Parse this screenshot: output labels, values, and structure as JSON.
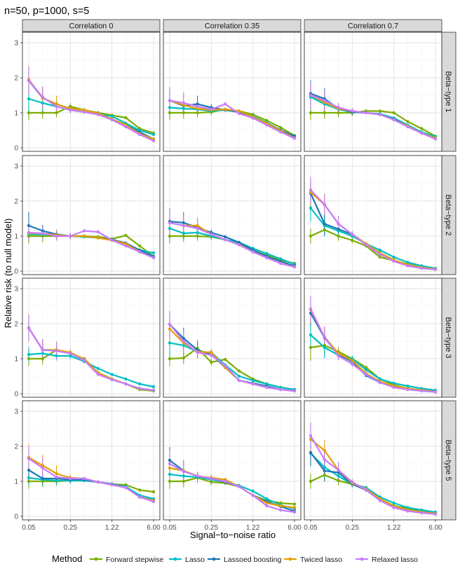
{
  "chart_data": {
    "type": "line",
    "title": "n=50, p=1000, s=5",
    "xlabel": "Signal−to−noise ratio",
    "ylabel": "Relative risk (to null model)",
    "x_ticks": [
      "0.05",
      "0.25",
      "1.22",
      "6.00"
    ],
    "y_ticks": [
      "0",
      "1",
      "2",
      "3"
    ],
    "ylim": [
      -0.1,
      3.3
    ],
    "legend_title": "Method",
    "legend_position": "bottom",
    "col_strips": [
      "Correlation 0",
      "Correlation 0.35",
      "Correlation 0.7"
    ],
    "row_strips": [
      "Beta−type 1",
      "Beta−type 2",
      "Beta−type 3",
      "Beta−type 5"
    ],
    "methods": [
      {
        "name": "Forward stepwise",
        "color": "#7cae00"
      },
      {
        "name": "Lasso",
        "color": "#00bfc4"
      },
      {
        "name": "Lassoed boosting",
        "color": "#1f78b4"
      },
      {
        "name": "Twiced lasso",
        "color": "#e69f00"
      },
      {
        "name": "Relaxed lasso",
        "color": "#c77cff"
      }
    ],
    "snr_index": [
      0,
      1,
      2,
      3,
      4,
      5,
      6,
      7,
      8,
      9
    ],
    "panels": [
      [
        [
          [
            1.0,
            1.0,
            1.0,
            1.18,
            1.08,
            1.0,
            0.93,
            0.86,
            0.55,
            0.42
          ],
          [
            1.4,
            1.28,
            1.18,
            1.08,
            1.02,
            0.96,
            0.9,
            0.7,
            0.5,
            0.38
          ],
          [
            1.92,
            1.42,
            1.25,
            1.12,
            1.08,
            0.98,
            0.82,
            0.65,
            0.45,
            0.25
          ],
          [
            1.95,
            1.42,
            1.25,
            1.12,
            1.08,
            0.98,
            0.82,
            0.65,
            0.4,
            0.25
          ],
          [
            1.92,
            1.45,
            1.18,
            1.08,
            1.02,
            0.95,
            0.8,
            0.6,
            0.38,
            0.2
          ]
        ],
        [
          [
            1.0,
            1.0,
            1.0,
            1.02,
            1.1,
            1.05,
            0.95,
            0.78,
            0.58,
            0.35
          ],
          [
            1.15,
            1.12,
            1.1,
            1.05,
            1.08,
            1.02,
            0.9,
            0.72,
            0.5,
            0.33
          ],
          [
            1.35,
            1.2,
            1.25,
            1.15,
            1.08,
            1.02,
            0.85,
            0.7,
            0.5,
            0.33
          ],
          [
            1.35,
            1.22,
            1.12,
            1.08,
            1.1,
            1.05,
            0.88,
            0.7,
            0.48,
            0.28
          ],
          [
            1.35,
            1.28,
            1.18,
            1.1,
            1.25,
            0.98,
            0.85,
            0.65,
            0.45,
            0.27
          ]
        ],
        [
          [
            1.0,
            1.0,
            1.0,
            1.0,
            1.05,
            1.05,
            1.0,
            0.75,
            0.55,
            0.33
          ],
          [
            1.45,
            1.25,
            1.1,
            1.02,
            1.0,
            0.97,
            0.85,
            0.65,
            0.45,
            0.32
          ],
          [
            1.55,
            1.4,
            1.12,
            1.02,
            1.0,
            0.95,
            0.82,
            0.62,
            0.42,
            0.28
          ],
          [
            1.5,
            1.3,
            1.12,
            1.05,
            1.0,
            0.95,
            0.8,
            0.62,
            0.42,
            0.28
          ],
          [
            1.5,
            1.35,
            1.15,
            1.05,
            1.0,
            0.95,
            0.8,
            0.6,
            0.42,
            0.25
          ]
        ]
      ],
      [
        [
          [
            1.0,
            1.0,
            1.0,
            1.0,
            1.0,
            0.98,
            0.92,
            1.02,
            0.72,
            0.42
          ],
          [
            1.05,
            1.05,
            1.03,
            1.0,
            0.98,
            0.95,
            0.9,
            0.75,
            0.6,
            0.52
          ],
          [
            1.3,
            1.15,
            1.05,
            1.0,
            1.0,
            0.95,
            0.9,
            0.8,
            0.6,
            0.42
          ],
          [
            1.08,
            1.08,
            1.03,
            1.0,
            1.0,
            0.95,
            0.88,
            0.78,
            0.55,
            0.38
          ],
          [
            1.1,
            1.08,
            1.0,
            1.0,
            1.15,
            1.12,
            0.88,
            0.72,
            0.55,
            0.38
          ]
        ],
        [
          [
            1.0,
            1.0,
            1.0,
            0.98,
            0.9,
            0.8,
            0.6,
            0.45,
            0.32,
            0.22
          ],
          [
            1.22,
            1.08,
            1.1,
            1.0,
            0.9,
            0.82,
            0.65,
            0.5,
            0.35,
            0.2
          ],
          [
            1.42,
            1.38,
            1.25,
            1.1,
            0.98,
            0.82,
            0.6,
            0.42,
            0.28,
            0.15
          ],
          [
            1.38,
            1.3,
            1.3,
            1.05,
            0.9,
            0.75,
            0.55,
            0.38,
            0.22,
            0.12
          ],
          [
            1.38,
            1.3,
            1.22,
            1.05,
            0.9,
            0.75,
            0.55,
            0.38,
            0.22,
            0.12
          ]
        ],
        [
          [
            1.0,
            1.18,
            1.0,
            0.88,
            0.72,
            0.4,
            0.3,
            0.2,
            0.1,
            0.05
          ],
          [
            1.8,
            1.3,
            1.15,
            1.0,
            0.78,
            0.6,
            0.4,
            0.25,
            0.15,
            0.08
          ],
          [
            2.22,
            1.35,
            1.2,
            1.05,
            0.78,
            0.5,
            0.3,
            0.18,
            0.1,
            0.06
          ],
          [
            2.25,
            1.9,
            1.35,
            1.05,
            0.78,
            0.52,
            0.32,
            0.18,
            0.1,
            0.06
          ],
          [
            2.32,
            1.9,
            1.35,
            1.05,
            0.75,
            0.48,
            0.28,
            0.15,
            0.08,
            0.05
          ]
        ]
      ],
      [
        [
          [
            1.0,
            1.0,
            1.25,
            1.15,
            1.0,
            0.6,
            0.42,
            0.28,
            0.12,
            0.08
          ],
          [
            1.12,
            1.15,
            1.08,
            1.08,
            0.92,
            0.72,
            0.55,
            0.42,
            0.28,
            0.2
          ],
          [
            1.88,
            1.25,
            1.25,
            1.15,
            0.98,
            0.6,
            0.42,
            0.28,
            0.15,
            0.1
          ],
          [
            1.88,
            1.25,
            1.25,
            1.18,
            0.98,
            0.6,
            0.42,
            0.28,
            0.15,
            0.1
          ],
          [
            1.88,
            1.25,
            1.22,
            1.15,
            0.95,
            0.55,
            0.4,
            0.28,
            0.15,
            0.1
          ]
        ],
        [
          [
            1.0,
            1.02,
            1.3,
            0.9,
            0.98,
            0.65,
            0.42,
            0.28,
            0.18,
            0.12
          ],
          [
            1.45,
            1.38,
            1.2,
            1.18,
            0.82,
            0.5,
            0.38,
            0.28,
            0.18,
            0.12
          ],
          [
            1.98,
            1.58,
            1.25,
            1.12,
            0.75,
            0.38,
            0.3,
            0.22,
            0.12,
            0.08
          ],
          [
            1.85,
            1.45,
            1.2,
            1.18,
            0.75,
            0.38,
            0.28,
            0.18,
            0.12,
            0.08
          ],
          [
            1.98,
            1.5,
            1.18,
            1.1,
            0.8,
            0.38,
            0.28,
            0.18,
            0.12,
            0.08
          ]
        ],
        [
          [
            1.32,
            1.38,
            1.2,
            1.0,
            0.75,
            0.42,
            0.25,
            0.15,
            0.1,
            0.05
          ],
          [
            1.68,
            1.32,
            1.1,
            1.0,
            0.68,
            0.42,
            0.3,
            0.22,
            0.15,
            0.1
          ],
          [
            2.3,
            1.6,
            1.12,
            0.92,
            0.52,
            0.32,
            0.2,
            0.15,
            0.1,
            0.06
          ],
          [
            2.4,
            1.62,
            1.15,
            0.95,
            0.58,
            0.35,
            0.22,
            0.15,
            0.1,
            0.06
          ],
          [
            2.42,
            1.62,
            1.08,
            0.85,
            0.55,
            0.32,
            0.18,
            0.12,
            0.08,
            0.05
          ]
        ]
      ],
      [
        [
          [
            1.0,
            1.0,
            1.0,
            1.02,
            1.02,
            0.98,
            0.92,
            0.9,
            0.75,
            0.7
          ],
          [
            1.1,
            1.05,
            1.02,
            1.02,
            1.02,
            0.98,
            0.92,
            0.85,
            0.6,
            0.5
          ],
          [
            1.32,
            1.08,
            1.08,
            1.05,
            1.05,
            0.98,
            0.92,
            0.82,
            0.55,
            0.45
          ],
          [
            1.68,
            1.45,
            1.22,
            1.1,
            1.08,
            0.98,
            0.9,
            0.82,
            0.55,
            0.45
          ],
          [
            1.65,
            1.38,
            1.12,
            1.08,
            1.08,
            0.98,
            0.9,
            0.82,
            0.55,
            0.42
          ]
        ],
        [
          [
            1.0,
            1.0,
            1.1,
            0.98,
            0.95,
            0.85,
            0.6,
            0.45,
            0.38,
            0.35
          ],
          [
            1.2,
            1.15,
            1.12,
            1.05,
            0.98,
            0.88,
            0.72,
            0.5,
            0.32,
            0.22
          ],
          [
            1.6,
            1.3,
            1.15,
            1.08,
            0.98,
            0.85,
            0.6,
            0.42,
            0.28,
            0.15
          ],
          [
            1.38,
            1.3,
            1.15,
            1.1,
            1.05,
            0.85,
            0.6,
            0.38,
            0.3,
            0.25
          ],
          [
            1.5,
            1.28,
            1.15,
            1.08,
            1.0,
            0.85,
            0.6,
            0.3,
            0.18,
            0.12
          ]
        ],
        [
          [
            1.0,
            1.18,
            1.02,
            0.92,
            0.75,
            0.5,
            0.3,
            0.22,
            0.15,
            0.1
          ],
          [
            1.8,
            1.4,
            1.15,
            0.92,
            0.82,
            0.55,
            0.38,
            0.25,
            0.18,
            0.12
          ],
          [
            1.82,
            1.3,
            1.25,
            0.92,
            0.75,
            0.48,
            0.25,
            0.18,
            0.12,
            0.08
          ],
          [
            2.2,
            1.88,
            1.32,
            0.95,
            0.78,
            0.5,
            0.28,
            0.18,
            0.12,
            0.08
          ],
          [
            2.3,
            1.62,
            1.32,
            0.98,
            0.75,
            0.45,
            0.25,
            0.15,
            0.1,
            0.06
          ]
        ]
      ]
    ]
  }
}
